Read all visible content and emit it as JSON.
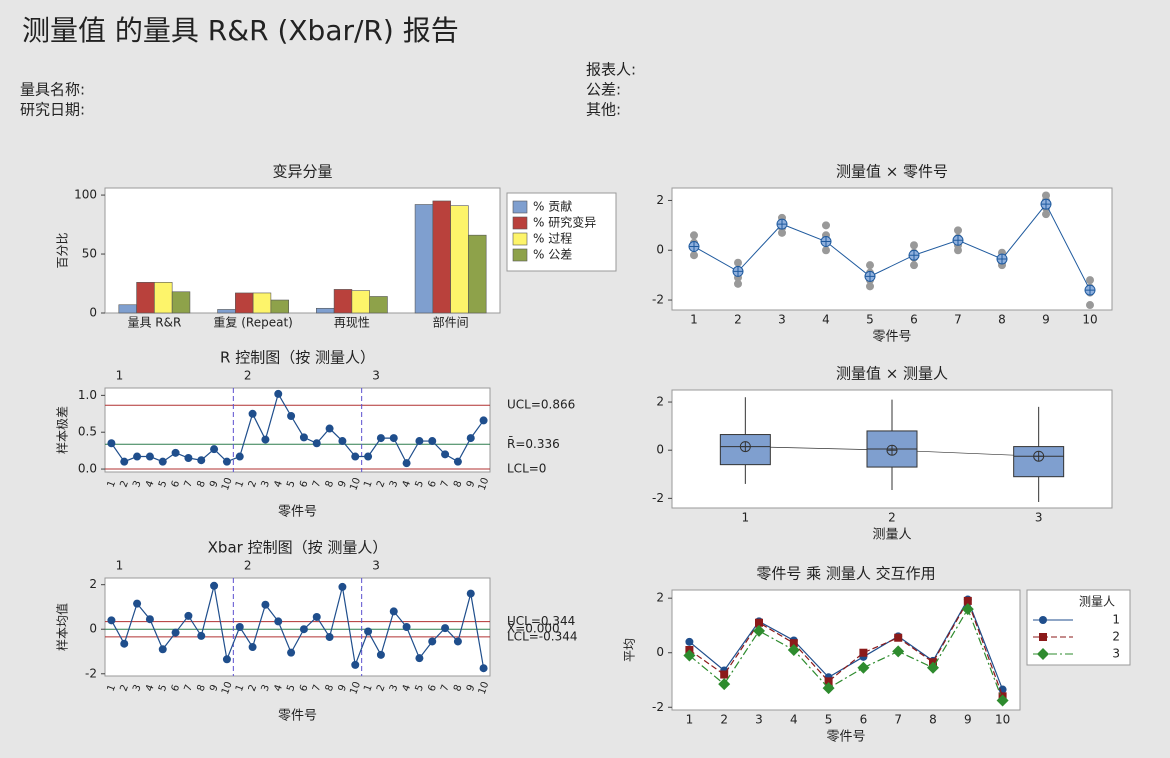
{
  "header": {
    "title": "测量值 的量具 R&R (Xbar/R) 报告",
    "gauge_name": "量具名称:",
    "study_date": "研究日期:",
    "reporter": "报表人:",
    "tolerance": "公差:",
    "other": "其他:"
  },
  "chart_data": [
    {
      "type": "bar",
      "title": "变异分量",
      "ylabel": "百分比",
      "categories": [
        "量具 R&R",
        "重复 (Repeat)",
        "再现性",
        "部件间"
      ],
      "series": [
        {
          "name": "% 贡献",
          "color": "#7f9fcf",
          "values": [
            7,
            3,
            4,
            92
          ]
        },
        {
          "name": "% 研究变异",
          "color": "#b9413c",
          "values": [
            26,
            17,
            20,
            95
          ]
        },
        {
          "name": "% 过程",
          "color": "#fdf46a",
          "values": [
            26,
            17,
            19,
            91
          ]
        },
        {
          "name": "% 公差",
          "color": "#8ea24a",
          "values": [
            18,
            11,
            14,
            66
          ]
        }
      ],
      "ylim": [
        0,
        106
      ],
      "yticks": [
        0,
        50,
        100
      ],
      "legend": "right"
    },
    {
      "type": "line",
      "title": "R 控制图（按 测量人）",
      "xlabel": "零件号",
      "ylabel": "样本极差",
      "groups": [
        "1",
        "2",
        "3"
      ],
      "categories": [
        "1",
        "2",
        "3",
        "4",
        "5",
        "6",
        "7",
        "8",
        "9",
        "10",
        "1",
        "2",
        "3",
        "4",
        "5",
        "6",
        "7",
        "8",
        "9",
        "10",
        "1",
        "2",
        "3",
        "4",
        "5",
        "6",
        "7",
        "8",
        "9",
        "10"
      ],
      "series": [
        {
          "color": "#1f4e8c",
          "values": [
            0.35,
            0.1,
            0.17,
            0.17,
            0.1,
            0.22,
            0.15,
            0.12,
            0.27,
            0.1,
            0.17,
            0.75,
            0.4,
            1.02,
            0.72,
            0.43,
            0.35,
            0.55,
            0.38,
            0.17,
            0.17,
            0.42,
            0.42,
            0.08,
            0.38,
            0.38,
            0.2,
            0.1,
            0.42,
            0.66
          ]
        }
      ],
      "limits": [
        {
          "value": 0.866,
          "label": "UCL=0.866",
          "color": "#b03030"
        },
        {
          "value": 0.336,
          "label": "R̄=0.336",
          "color": "#2e7d4e"
        },
        {
          "value": 0,
          "label": "LCL=0",
          "color": "#b03030"
        }
      ],
      "ylim": [
        -0.04,
        1.1
      ],
      "yticks": [
        {
          "value": 0,
          "label": "0.0"
        },
        {
          "value": 0.5,
          "label": "0.5"
        },
        {
          "value": 1,
          "label": "1.0"
        }
      ]
    },
    {
      "type": "line",
      "title": "Xbar 控制图（按 测量人）",
      "xlabel": "零件号",
      "ylabel": "样本均值",
      "groups": [
        "1",
        "2",
        "3"
      ],
      "categories": [
        "1",
        "2",
        "3",
        "4",
        "5",
        "6",
        "7",
        "8",
        "9",
        "10",
        "1",
        "2",
        "3",
        "4",
        "5",
        "6",
        "7",
        "8",
        "9",
        "10",
        "1",
        "2",
        "3",
        "4",
        "5",
        "6",
        "7",
        "8",
        "9",
        "10"
      ],
      "series": [
        {
          "color": "#1f4e8c",
          "values": [
            0.4,
            -0.65,
            1.15,
            0.45,
            -0.9,
            -0.15,
            0.6,
            -0.3,
            1.95,
            -1.35,
            0.1,
            -0.8,
            1.1,
            0.35,
            -1.05,
            0,
            0.55,
            -0.35,
            1.9,
            -1.6,
            -0.1,
            -1.15,
            0.8,
            0.1,
            -1.3,
            -0.55,
            0.05,
            -0.55,
            1.6,
            -1.75
          ]
        }
      ],
      "limits": [
        {
          "value": 0.344,
          "label": "UCL=0.344",
          "color": "#b03030"
        },
        {
          "value": 0,
          "label": "X̄=0.000",
          "color": "#2e7d4e"
        },
        {
          "value": -0.344,
          "label": "LCL=-0.344",
          "color": "#b03030"
        }
      ],
      "ylim": [
        -2.1,
        2.3
      ],
      "yticks": [
        -2,
        0,
        2
      ]
    },
    {
      "type": "scatter",
      "title": "测量值 × 零件号",
      "xlabel": "零件号",
      "categories": [
        "1",
        "2",
        "3",
        "4",
        "5",
        "6",
        "7",
        "8",
        "9",
        "10"
      ],
      "points": [
        [
          0.6,
          0.3,
          0.1,
          -0.2
        ],
        [
          -0.5,
          -0.8,
          -1.1,
          -1.35
        ],
        [
          1.3,
          1.1,
          0.9,
          0.7
        ],
        [
          1.0,
          0.6,
          0.3,
          0.0
        ],
        [
          -0.6,
          -0.9,
          -1.2,
          -1.45
        ],
        [
          0.2,
          -0.1,
          -0.3,
          -0.6
        ],
        [
          0.8,
          0.5,
          0.2,
          0.0
        ],
        [
          -0.1,
          -0.3,
          -0.5,
          -0.6
        ],
        [
          2.2,
          2.0,
          1.7,
          1.45
        ],
        [
          -1.2,
          -1.5,
          -1.7,
          -2.2
        ]
      ],
      "point_color": "#999999",
      "series": [
        {
          "color": "#1f5a9e",
          "values": [
            0.15,
            -0.85,
            1.05,
            0.35,
            -1.05,
            -0.2,
            0.4,
            -0.35,
            1.85,
            -1.6
          ]
        }
      ],
      "ylim": [
        -2.4,
        2.5
      ],
      "yticks": [
        -2,
        0,
        2
      ]
    },
    {
      "type": "box",
      "title": "测量值 × 测量人",
      "xlabel": "测量人",
      "categories": [
        "1",
        "2",
        "3"
      ],
      "color": "#7f9fcf",
      "boxes": [
        {
          "min": -1.4,
          "q1": -0.6,
          "median": 0.15,
          "q3": 0.65,
          "max": 2.2,
          "mean": 0.15
        },
        {
          "min": -1.65,
          "q1": -0.7,
          "median": 0.05,
          "q3": 0.8,
          "max": 2.1,
          "mean": 0.0
        },
        {
          "min": -2.15,
          "q1": -1.1,
          "median": -0.25,
          "q3": 0.15,
          "max": 1.8,
          "mean": -0.25
        }
      ],
      "ylim": [
        -2.4,
        2.5
      ],
      "yticks": [
        -2,
        0,
        2
      ]
    },
    {
      "type": "line",
      "title": "零件号 乘 测量人 交互作用",
      "xlabel": "零件号",
      "ylabel": "平均",
      "legend_title": "测量人",
      "categories": [
        "1",
        "2",
        "3",
        "4",
        "5",
        "6",
        "7",
        "8",
        "9",
        "10"
      ],
      "series": [
        {
          "name": "1",
          "color": "#1f4e8c",
          "marker": "circle",
          "dash": "solid",
          "values": [
            0.4,
            -0.65,
            1.15,
            0.45,
            -0.9,
            -0.15,
            0.6,
            -0.3,
            1.95,
            -1.35
          ]
        },
        {
          "name": "2",
          "color": "#8b1a1a",
          "marker": "square",
          "dash": "dashed",
          "values": [
            0.1,
            -0.8,
            1.1,
            0.35,
            -1.05,
            0,
            0.55,
            -0.35,
            1.9,
            -1.6
          ]
        },
        {
          "name": "3",
          "color": "#2e8b2e",
          "marker": "diamond",
          "dash": "dashdot",
          "values": [
            -0.1,
            -1.15,
            0.8,
            0.1,
            -1.3,
            -0.55,
            0.05,
            -0.55,
            1.6,
            -1.75
          ]
        }
      ],
      "ylim": [
        -2.1,
        2.3
      ],
      "yticks": [
        -2,
        0,
        2
      ],
      "legend": "right"
    }
  ]
}
